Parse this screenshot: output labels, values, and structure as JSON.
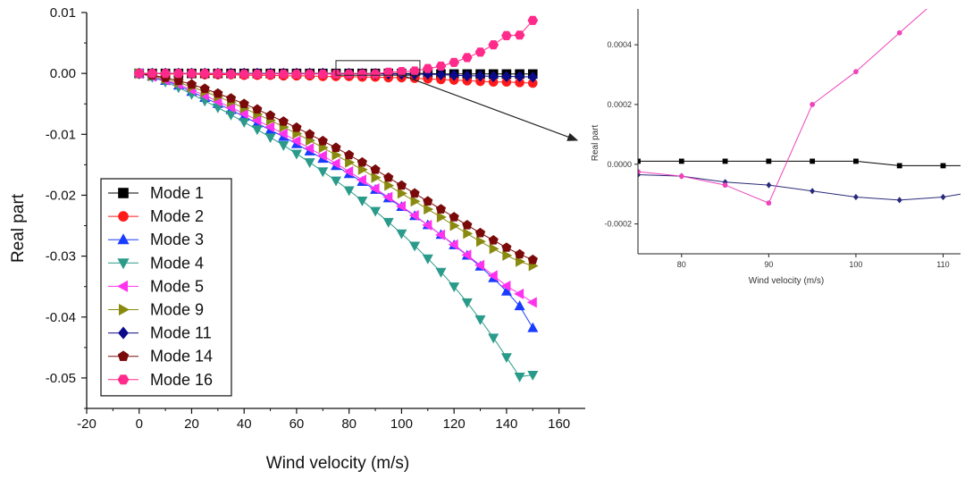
{
  "chart_data": [
    {
      "type": "line",
      "xlabel": "Wind velocity (m/s)",
      "ylabel": "Real part",
      "xlim": [
        -20,
        170
      ],
      "ylim": [
        -0.055,
        0.01
      ],
      "xticks": [
        "-20",
        "0",
        "20",
        "40",
        "60",
        "80",
        "100",
        "120",
        "140",
        "160"
      ],
      "yticks": [
        "0.01",
        "0.00",
        "-0.01",
        "-0.02",
        "-0.03",
        "-0.04",
        "-0.05"
      ],
      "legend_position": "bottom-left",
      "x": [
        0,
        5,
        10,
        15,
        20,
        25,
        30,
        35,
        40,
        45,
        50,
        55,
        60,
        65,
        70,
        75,
        80,
        85,
        90,
        95,
        100,
        105,
        110,
        115,
        120,
        125,
        130,
        135,
        140,
        145,
        150
      ],
      "series": [
        {
          "name": "Mode 1",
          "color": "#000000",
          "marker": "square",
          "values": [
            0,
            0,
            0,
            0,
            0,
            0,
            0,
            0,
            0,
            0,
            0,
            0,
            0,
            0,
            0,
            0,
            0,
            0,
            0,
            0,
            0,
            0,
            0,
            -0.0001,
            -0.0001,
            -0.0001,
            -0.0001,
            -0.0001,
            -0.0001,
            -0.0001,
            -0.0001
          ]
        },
        {
          "name": "Mode 2",
          "color": "#ff1a1a",
          "marker": "circle",
          "values": [
            0,
            0,
            -0.0001,
            -0.0001,
            -0.0001,
            -0.0002,
            -0.0002,
            -0.0002,
            -0.0003,
            -0.0003,
            -0.0003,
            -0.0004,
            -0.0004,
            -0.0004,
            -0.0005,
            -0.0005,
            -0.0005,
            -0.0006,
            -0.0006,
            -0.0007,
            -0.0007,
            -0.0008,
            -0.0009,
            -0.001,
            -0.0011,
            -0.0012,
            -0.0013,
            -0.0014,
            -0.0014,
            -0.0015,
            -0.0016
          ]
        },
        {
          "name": "Mode 3",
          "color": "#1a3cff",
          "marker": "triangle-up",
          "values": [
            0,
            -0.0005,
            -0.0012,
            -0.002,
            -0.003,
            -0.004,
            -0.005,
            -0.006,
            -0.0071,
            -0.0082,
            -0.0093,
            -0.0104,
            -0.0116,
            -0.0128,
            -0.014,
            -0.0152,
            -0.0165,
            -0.0178,
            -0.0191,
            -0.0205,
            -0.0219,
            -0.0234,
            -0.0249,
            -0.0265,
            -0.0282,
            -0.0299,
            -0.0317,
            -0.0336,
            -0.0358,
            -0.0382,
            -0.0418
          ]
        },
        {
          "name": "Mode 4",
          "color": "#2a9a8a",
          "marker": "triangle-down",
          "values": [
            0,
            -0.0006,
            -0.0014,
            -0.0023,
            -0.0034,
            -0.0045,
            -0.0056,
            -0.0068,
            -0.008,
            -0.0092,
            -0.0105,
            -0.0118,
            -0.0132,
            -0.0146,
            -0.0161,
            -0.0176,
            -0.0192,
            -0.0209,
            -0.0226,
            -0.0244,
            -0.0263,
            -0.0283,
            -0.0304,
            -0.0326,
            -0.035,
            -0.0376,
            -0.0404,
            -0.0434,
            -0.0466,
            -0.0498,
            -0.0495
          ]
        },
        {
          "name": "Mode 5",
          "color": "#ff33ee",
          "marker": "triangle-left",
          "values": [
            0,
            -0.0005,
            -0.0011,
            -0.0018,
            -0.0027,
            -0.0036,
            -0.0046,
            -0.0056,
            -0.0066,
            -0.0077,
            -0.0088,
            -0.0099,
            -0.0111,
            -0.0123,
            -0.0135,
            -0.0148,
            -0.0161,
            -0.0175,
            -0.0189,
            -0.0203,
            -0.0218,
            -0.0233,
            -0.0249,
            -0.0265,
            -0.0281,
            -0.0298,
            -0.0315,
            -0.0332,
            -0.0349,
            -0.0362,
            -0.0376
          ]
        },
        {
          "name": "Mode 9",
          "color": "#8a8a10",
          "marker": "triangle-right",
          "values": [
            0,
            -0.0004,
            -0.0009,
            -0.0015,
            -0.0022,
            -0.003,
            -0.0038,
            -0.0047,
            -0.0057,
            -0.0067,
            -0.0077,
            -0.0088,
            -0.0099,
            -0.011,
            -0.0122,
            -0.0134,
            -0.0146,
            -0.0158,
            -0.0171,
            -0.0184,
            -0.0197,
            -0.021,
            -0.0223,
            -0.0236,
            -0.025,
            -0.0263,
            -0.0276,
            -0.0288,
            -0.0299,
            -0.0309,
            -0.0316
          ]
        },
        {
          "name": "Mode 11",
          "color": "#0a0a8a",
          "marker": "diamond",
          "values": [
            0,
            0,
            0,
            0,
            0,
            0,
            0,
            0,
            0,
            0,
            0,
            0,
            0,
            0,
            0,
            -3e-05,
            -4e-05,
            -6e-05,
            -7e-05,
            -9e-05,
            -0.00011,
            -0.00012,
            -0.00011,
            -0.0002,
            -0.0003,
            -0.0004,
            -0.0004,
            -0.0005,
            -0.0005,
            -0.0005,
            -0.0006
          ]
        },
        {
          "name": "Mode 14",
          "color": "#7a0a0a",
          "marker": "pentagon",
          "values": [
            0,
            -0.0003,
            -0.0007,
            -0.0012,
            -0.0018,
            -0.0025,
            -0.0033,
            -0.0041,
            -0.005,
            -0.0059,
            -0.0069,
            -0.0079,
            -0.0089,
            -0.01,
            -0.0111,
            -0.0122,
            -0.0134,
            -0.0146,
            -0.0158,
            -0.0171,
            -0.0184,
            -0.0197,
            -0.021,
            -0.0223,
            -0.0236,
            -0.0249,
            -0.0262,
            -0.0274,
            -0.0286,
            -0.0297,
            -0.0306
          ]
        },
        {
          "name": "Mode 16",
          "color": "#ff2a8a",
          "marker": "hexagon",
          "values": [
            0,
            0,
            0,
            0,
            0,
            0,
            0,
            -0.0001,
            -0.0001,
            -0.0001,
            -0.0001,
            -0.0001,
            -0.0001,
            -0.0001,
            -0.0001,
            -0.0001,
            -0.0001,
            -0.0001,
            -0.0001,
            0.0002,
            0.0003,
            0.0004,
            0.0008,
            0.0012,
            0.0018,
            0.0026,
            0.0035,
            0.0047,
            0.0062,
            0.0063,
            0.0087
          ]
        }
      ]
    },
    {
      "type": "line",
      "xlabel": "Wind velocity (m/s)",
      "ylabel": "Real part",
      "xlim": [
        75,
        112
      ],
      "ylim": [
        -0.0003,
        0.00052
      ],
      "xticks": [
        "80",
        "90",
        "100",
        "110"
      ],
      "yticks": [
        "0.0004",
        "0.0002",
        "0.0000",
        "-0.0002"
      ],
      "series": [
        {
          "name": "Mode 1",
          "color": "#000000",
          "marker": "square",
          "x": [
            75,
            80,
            85,
            90,
            95,
            100,
            105,
            110,
            112
          ],
          "values": [
            1e-05,
            1e-05,
            1e-05,
            1e-05,
            1e-05,
            1e-05,
            -5e-06,
            -5e-06,
            -5e-06
          ]
        },
        {
          "name": "Mode 11",
          "color": "#2a2a7a",
          "marker": "diamond",
          "x": [
            75,
            80,
            85,
            90,
            95,
            100,
            105,
            110,
            112
          ],
          "values": [
            -3.5e-05,
            -4e-05,
            -6e-05,
            -7e-05,
            -9e-05,
            -0.00011,
            -0.00012,
            -0.00011,
            -0.0001
          ]
        },
        {
          "name": "Mode 16",
          "color": "#ee44bb",
          "marker": "circle",
          "x": [
            75,
            80,
            85,
            90,
            95,
            100,
            105,
            108.5
          ],
          "values": [
            -2.5e-05,
            -4e-05,
            -7e-05,
            -0.00013,
            0.0002,
            0.00031,
            0.00044,
            0.00053
          ]
        }
      ]
    }
  ]
}
